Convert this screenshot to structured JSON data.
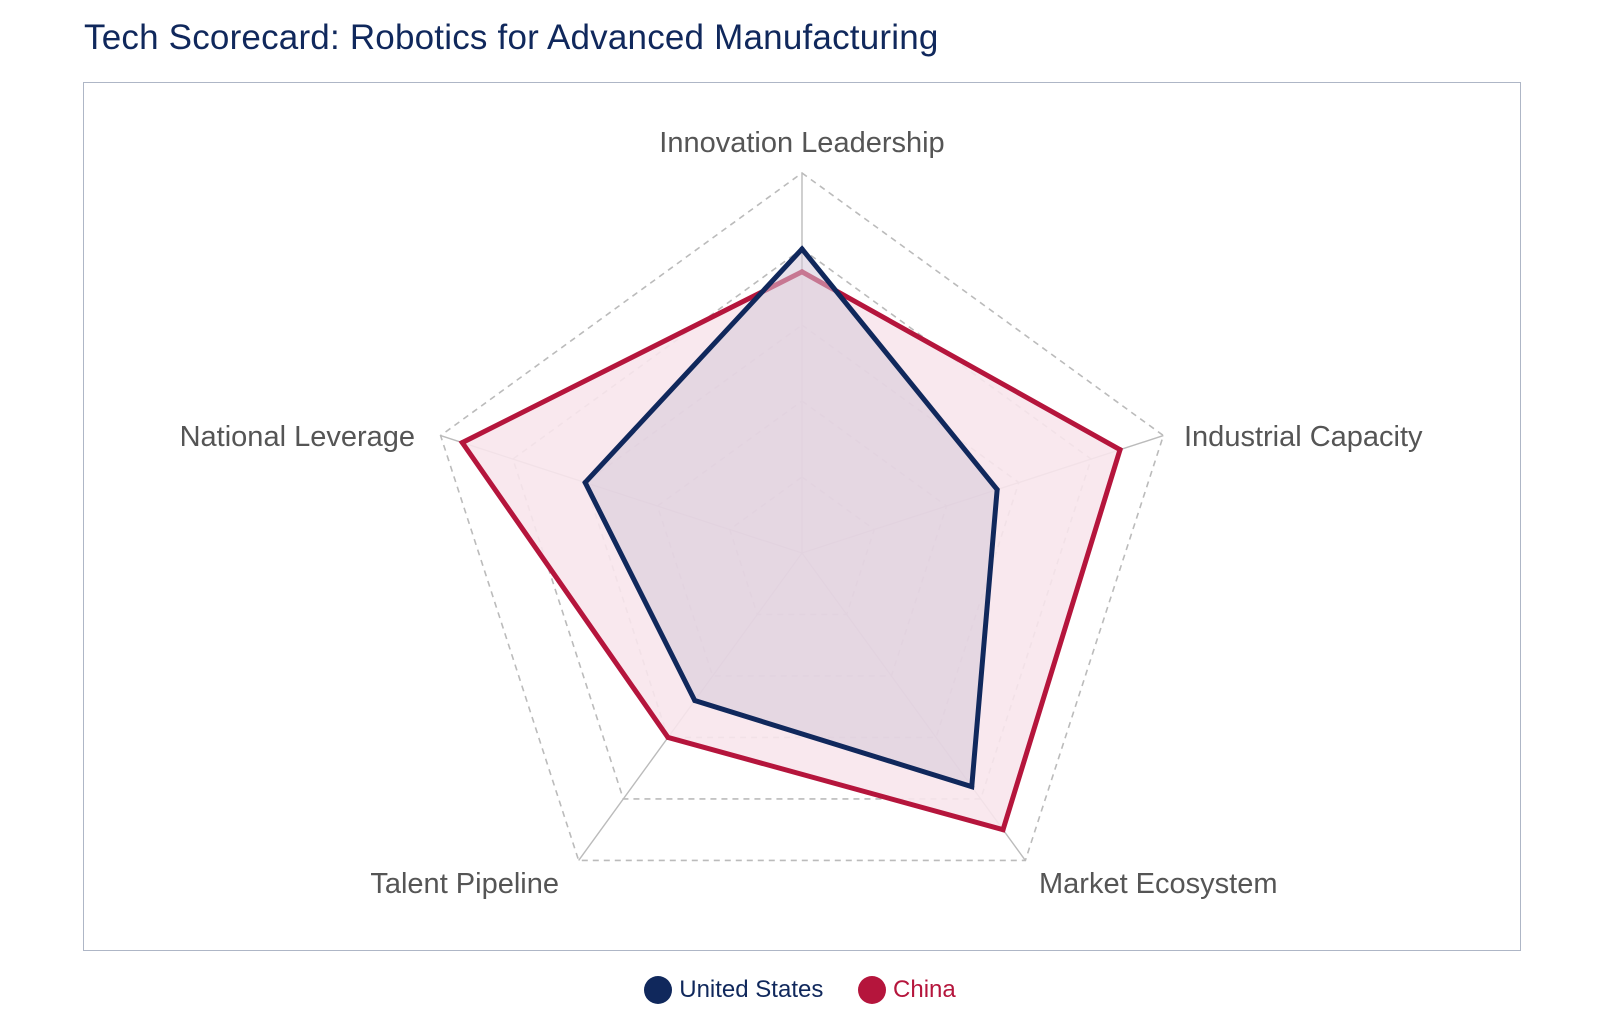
{
  "title": "Tech Scorecard: Robotics for Advanced Manufacturing",
  "colors": {
    "us": "#10285c",
    "china": "#b5153c",
    "china_fill": "#f8e6ec",
    "us_fill": "#d6c9d8",
    "grid": "#bbbbbb",
    "axis_text": "#555555"
  },
  "chart_data": {
    "type": "radar",
    "title": "Tech Scorecard: Robotics for Advanced Manufacturing",
    "axes": [
      "Innovation Leadership",
      "Industrial Capacity",
      "Market Ecosystem",
      "Talent Pipeline",
      "National Leverage"
    ],
    "range": [
      0,
      5
    ],
    "grid_levels": 5,
    "legend_position": "bottom-center",
    "series": [
      {
        "name": "China",
        "values": [
          3.7,
          4.4,
          4.5,
          3.0,
          4.7
        ]
      },
      {
        "name": "United States",
        "values": [
          4.0,
          2.7,
          3.8,
          2.4,
          3.0
        ]
      }
    ]
  },
  "legend": {
    "us_label": "United States",
    "china_label": "China"
  }
}
